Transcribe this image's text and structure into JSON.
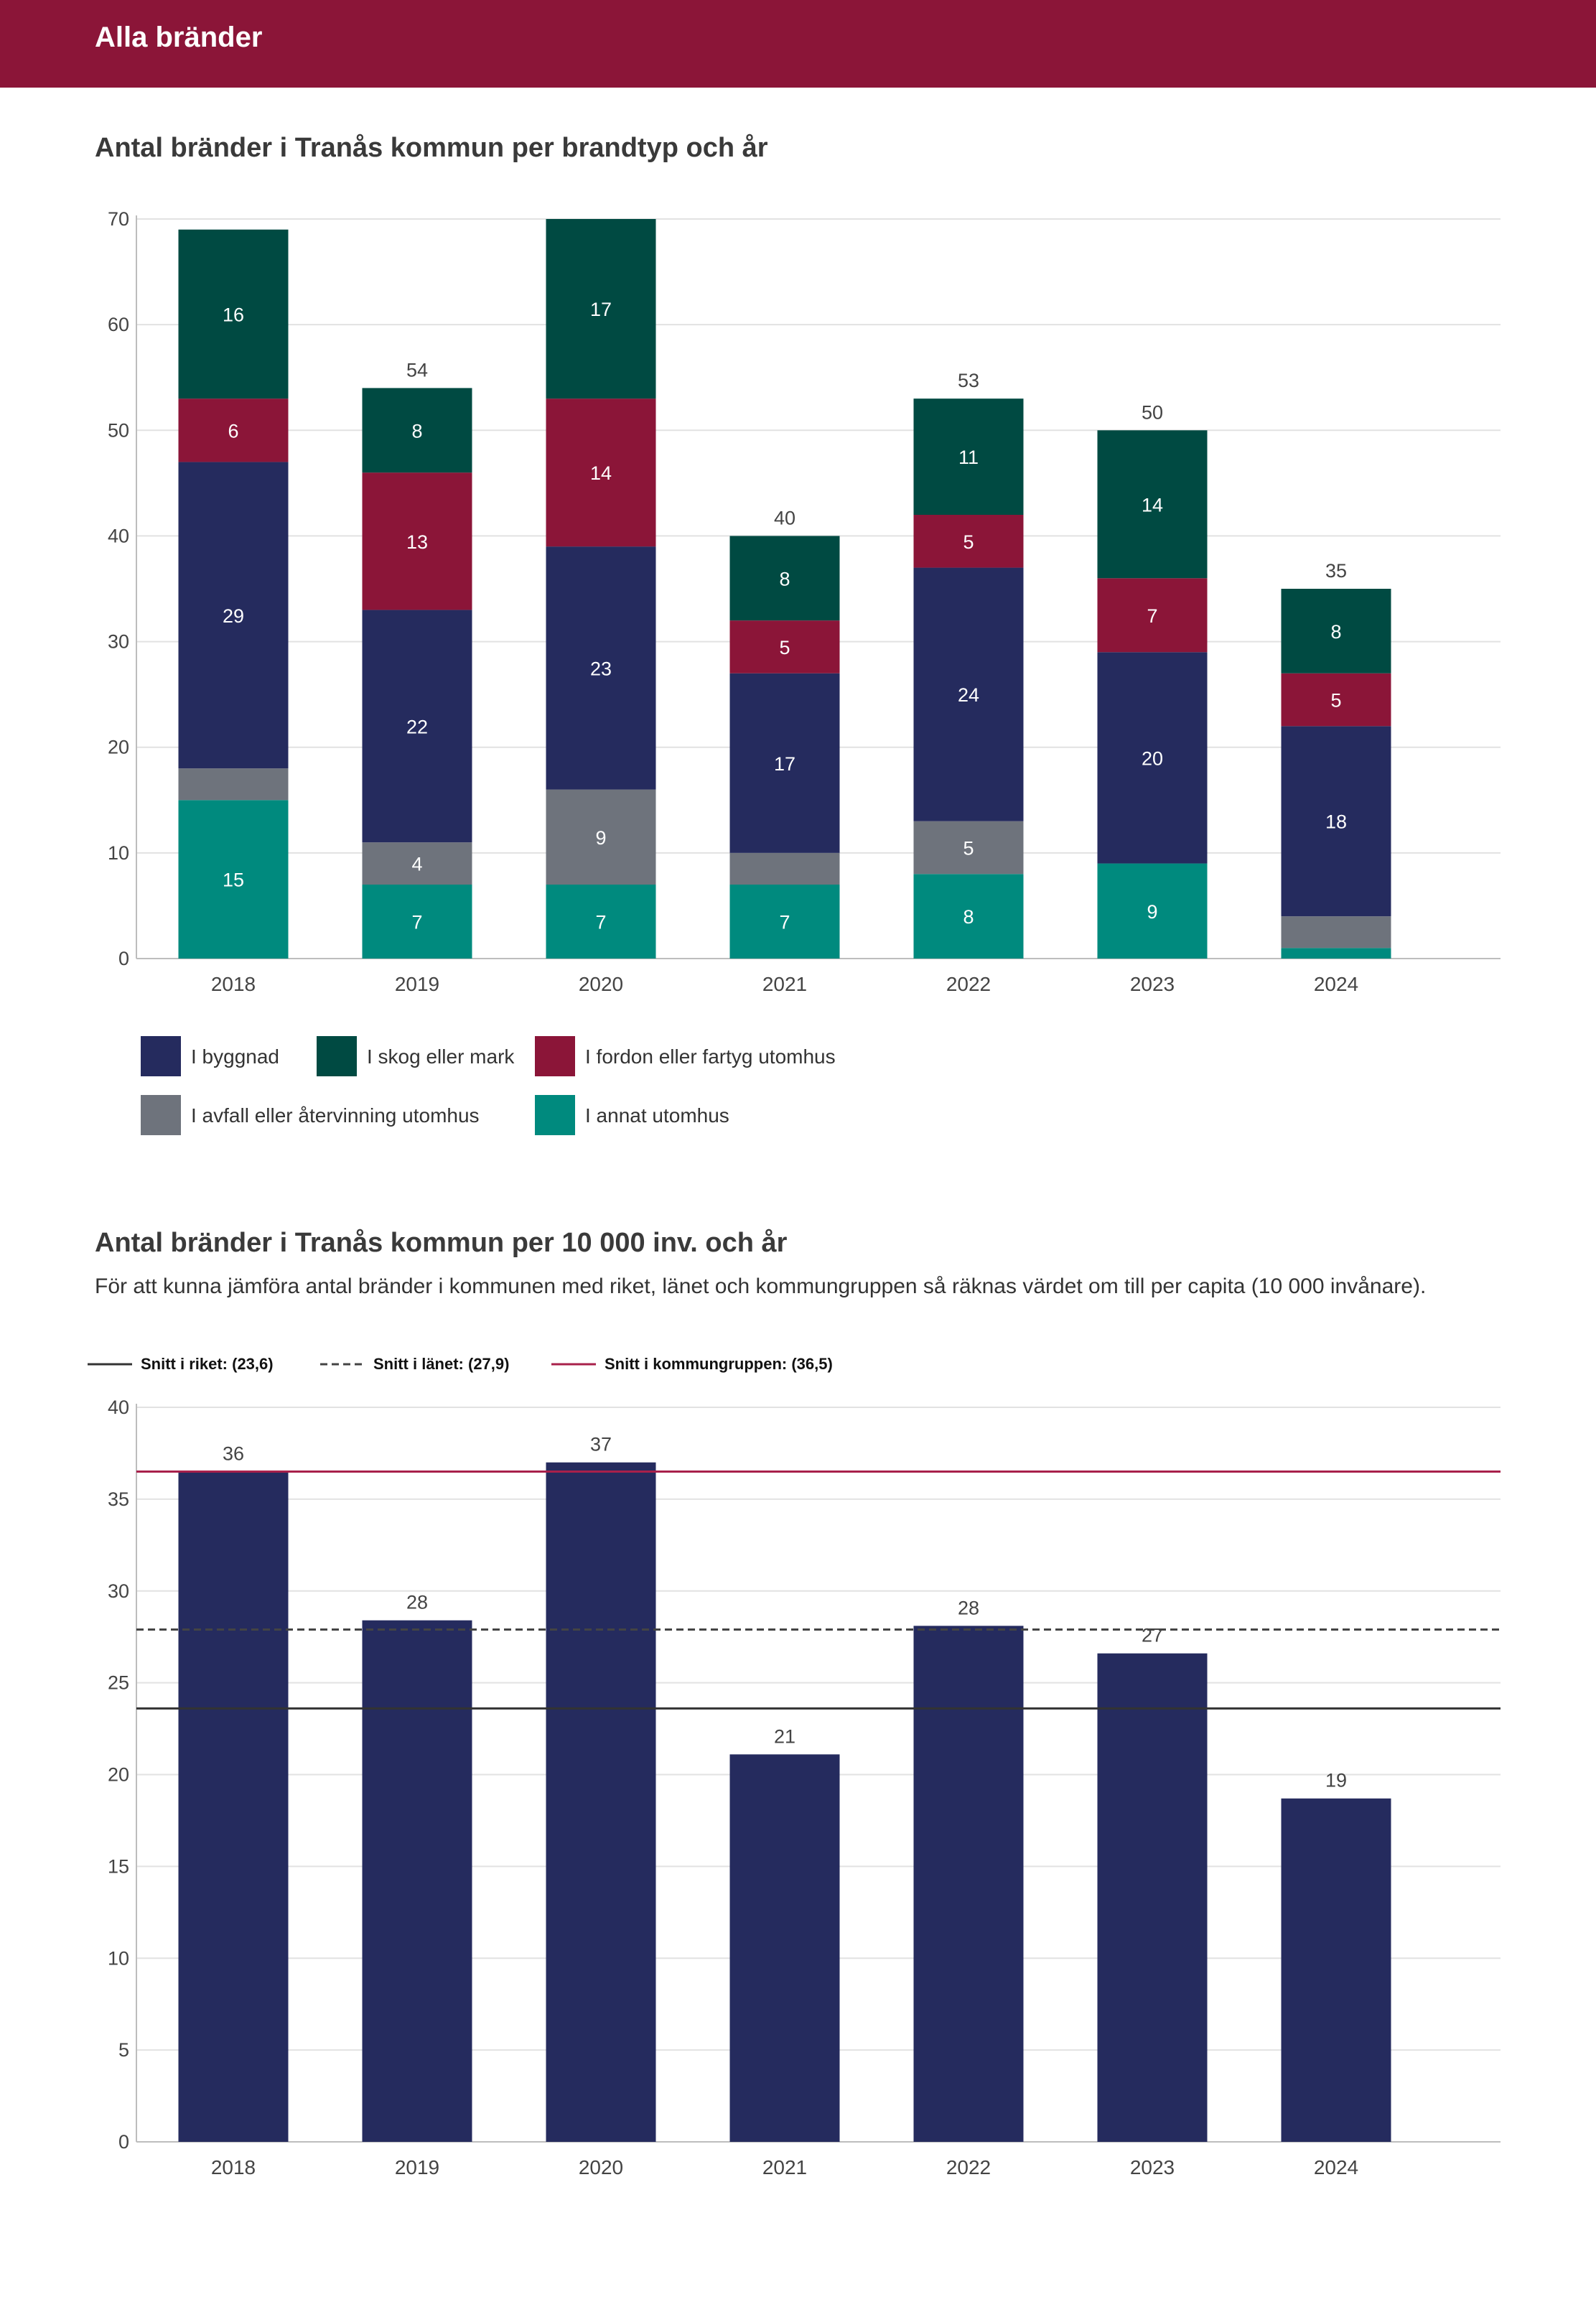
{
  "header": {
    "title": "Alla bränder"
  },
  "chart1": {
    "title": "Antal bränder i Tranås kommun per brandtyp och år"
  },
  "chart2": {
    "title": "Antal bränder i Tranås kommun per 10 000 inv. och år",
    "subtitle": "För att kunna jämföra antal bränder i kommunen med riket, länet och kommungruppen så räknas värdet om till per capita (10 000 invånare)."
  },
  "chart_data": [
    {
      "type": "bar",
      "stacked": true,
      "title": "Antal bränder i Tranås kommun per brandtyp och år",
      "categories": [
        "2018",
        "2019",
        "2020",
        "2021",
        "2022",
        "2023",
        "2024"
      ],
      "ylim": [
        0,
        70
      ],
      "yticks": [
        "0",
        "10",
        "20",
        "30",
        "40",
        "50",
        "60",
        "70"
      ],
      "grid": true,
      "legend_position": "bottom",
      "series": [
        {
          "name": "I annat utomhus",
          "color": "#008a7e",
          "values": [
            15,
            7,
            7,
            7,
            8,
            9,
            1
          ],
          "labels": [
            "15",
            "7",
            "7",
            "7",
            "8",
            "9",
            ""
          ]
        },
        {
          "name": "I avfall eller återvinning utomhus",
          "color": "#6e737c",
          "values": [
            3,
            4,
            9,
            3,
            5,
            0,
            3
          ],
          "labels": [
            "",
            "4",
            "9",
            "",
            "5",
            "",
            ""
          ]
        },
        {
          "name": "I byggnad",
          "color": "#252b5e",
          "values": [
            29,
            22,
            23,
            17,
            24,
            20,
            18
          ],
          "labels": [
            "29",
            "22",
            "23",
            "17",
            "24",
            "20",
            "18"
          ]
        },
        {
          "name": "I fordon eller fartyg utomhus",
          "color": "#8b1538",
          "values": [
            6,
            13,
            14,
            5,
            5,
            7,
            5
          ],
          "labels": [
            "6",
            "13",
            "14",
            "5",
            "5",
            "7",
            "5"
          ]
        },
        {
          "name": "I skog eller mark",
          "color": "#004a42",
          "values": [
            16,
            8,
            17,
            8,
            11,
            14,
            8
          ],
          "labels": [
            "16",
            "8",
            "17",
            "8",
            "11",
            "14",
            "8"
          ]
        }
      ],
      "totals": [
        "",
        "54",
        "",
        "40",
        "53",
        "50",
        "35"
      ],
      "legend_order": [
        "I byggnad",
        "I skog eller mark",
        "I fordon eller fartyg utomhus",
        "I avfall eller återvinning utomhus",
        "I annat utomhus"
      ]
    },
    {
      "type": "bar",
      "title": "Antal bränder i Tranås kommun per 10 000 inv. och år",
      "categories": [
        "2018",
        "2019",
        "2020",
        "2021",
        "2022",
        "2023",
        "2024"
      ],
      "values": [
        36.5,
        28.4,
        37.0,
        21.1,
        28.1,
        26.6,
        18.7
      ],
      "value_labels": [
        "36",
        "28",
        "37",
        "21",
        "28",
        "27",
        "19"
      ],
      "bar_color": "#252b5e",
      "ylim": [
        0,
        40
      ],
      "yticks": [
        "0",
        "5",
        "10",
        "15",
        "20",
        "25",
        "30",
        "35",
        "40"
      ],
      "grid": true,
      "reference_lines": [
        {
          "label": "Snitt i riket: (23,6)",
          "value": 23.6,
          "color": "#333333",
          "style": "solid"
        },
        {
          "label": "Snitt i länet: (27,9)",
          "value": 27.9,
          "color": "#444444",
          "style": "dashed"
        },
        {
          "label": "Snitt i kommungruppen: (36,5)",
          "value": 36.5,
          "color": "#a8204b",
          "style": "solid"
        }
      ],
      "legend_position": "top-left"
    }
  ]
}
